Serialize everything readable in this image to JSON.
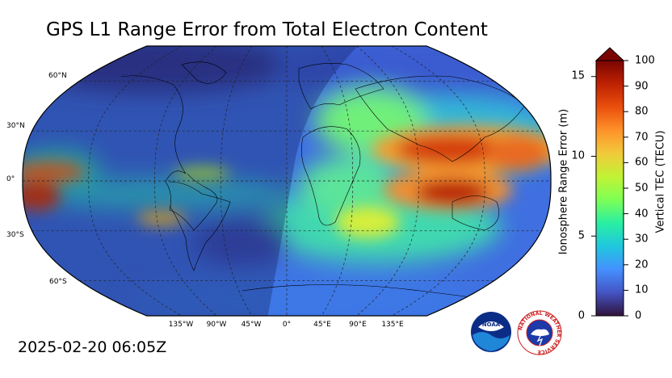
{
  "title": "GPS L1 Range Error from Total Electron Content",
  "timestamp": "2025-02-20 06:05Z",
  "map": {
    "projection": "Robinson",
    "lat_labels": [
      "60°N",
      "30°N",
      "0°",
      "30°S",
      "60°S"
    ],
    "lon_labels": [
      "135°W",
      "90°W",
      "45°W",
      "0°",
      "45°E",
      "90°E",
      "135°E"
    ],
    "night_shading": true
  },
  "colorbar": {
    "left_label": "Ionosphere Range Error (m)",
    "right_label": "Vertical TEC (TECU)",
    "left_ticks": [
      "0",
      "5",
      "10",
      "15"
    ],
    "right_ticks": [
      "0",
      "10",
      "20",
      "30",
      "40",
      "50",
      "60",
      "70",
      "80",
      "90",
      "100"
    ],
    "extend": "max",
    "colormap": [
      "#30123b",
      "#4454c4",
      "#4490fe",
      "#1fc8de",
      "#29efa2",
      "#7eff55",
      "#c1f334",
      "#f1ca3a",
      "#fe922a",
      "#ea4f0d",
      "#be2102",
      "#7a0403"
    ]
  },
  "logos": {
    "noaa": "NOAA",
    "nws": "NATIONAL WEATHER SERVICE"
  }
}
